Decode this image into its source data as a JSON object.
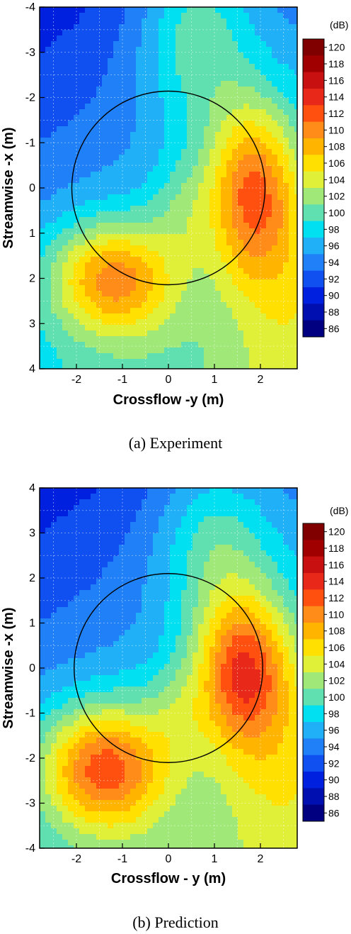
{
  "chart_data": [
    {
      "type": "heatmap",
      "caption": "(a)  Experiment",
      "xlabel": "Crossflow -y (m)",
      "ylabel": "Streamwise -x (m)",
      "xlim": [
        -2.8,
        2.8
      ],
      "ylim_top_to_bottom": [
        -4,
        4
      ],
      "xticks": [
        "-2",
        "-1",
        "0",
        "1",
        "2"
      ],
      "yticks": [
        "-4",
        "-3",
        "-2",
        "-1",
        "0",
        "1",
        "2",
        "3",
        "4"
      ],
      "grid": true,
      "circle": {
        "cx": 0,
        "cy": 0,
        "r": 2.1
      },
      "colorbar": {
        "unit": "(dB)",
        "levels": [
          "120",
          "118",
          "116",
          "114",
          "112",
          "110",
          "108",
          "106",
          "104",
          "102",
          "100",
          "98",
          "96",
          "94",
          "92",
          "90",
          "88",
          "86"
        ],
        "colors": [
          "#800000",
          "#a00000",
          "#c81010",
          "#e82818",
          "#ff5010",
          "#ff8c18",
          "#ffb400",
          "#ffe000",
          "#e0f038",
          "#a0e878",
          "#60e0b0",
          "#00e0f0",
          "#20b0f8",
          "#2080f8",
          "#1050f0",
          "#0020e0",
          "#0010b0",
          "#000080"
        ]
      },
      "sources": [
        {
          "x": 1.8,
          "y": 0.0,
          "a": 13,
          "sx": 0.7,
          "sy": 1.4
        },
        {
          "x": -1.2,
          "y": 2.0,
          "a": 13,
          "sx": 1.0,
          "sy": 0.9
        },
        {
          "x": 2.6,
          "y": 2.0,
          "a": 4,
          "sx": 0.9,
          "sy": 1.8
        },
        {
          "x": 0.3,
          "y": 0.4,
          "a": 3,
          "sx": 0.5,
          "sy": 0.8
        },
        {
          "x": 0.6,
          "y": -3.5,
          "a": 7,
          "sx": 0.9,
          "sy": 1.5
        }
      ],
      "base": {
        "at": 100,
        "y": 3.0,
        "x": -0.8
      }
    },
    {
      "type": "heatmap",
      "caption": "(b)  Prediction",
      "xlabel": "Crossflow - y (m)",
      "ylabel": "Streamwise -x (m)",
      "xlim": [
        -2.8,
        2.8
      ],
      "ylim_top_to_bottom": [
        4,
        -4
      ],
      "xticks": [
        "-2",
        "-1",
        "0",
        "1",
        "2"
      ],
      "yticks": [
        "4",
        "3",
        "2",
        "1",
        "0",
        "-1",
        "-2",
        "-3",
        "-4"
      ],
      "grid": true,
      "circle": {
        "cx": 0,
        "cy": 0,
        "r": 2.05
      },
      "colorbar": {
        "unit": "(dB)",
        "levels": [
          "120",
          "118",
          "116",
          "114",
          "112",
          "110",
          "108",
          "106",
          "104",
          "102",
          "100",
          "98",
          "96",
          "94",
          "92",
          "90",
          "88",
          "86"
        ],
        "colors": [
          "#800000",
          "#a00000",
          "#c81010",
          "#e82818",
          "#ff5010",
          "#ff8c18",
          "#ffb400",
          "#ffe000",
          "#e0f038",
          "#a0e878",
          "#60e0b0",
          "#00e0f0",
          "#20b0f8",
          "#2080f8",
          "#1050f0",
          "#0020e0",
          "#0010b0",
          "#000080"
        ]
      },
      "sources": [
        {
          "x": 1.6,
          "y": 0.0,
          "a": 14,
          "sx": 0.7,
          "sy": 1.2
        },
        {
          "x": -1.4,
          "y": -2.2,
          "a": 15,
          "sx": 1.0,
          "sy": 1.0
        },
        {
          "x": 2.4,
          "y": -1.8,
          "a": 5,
          "sx": 1.0,
          "sy": 1.8
        },
        {
          "x": 0.2,
          "y": -1.0,
          "a": 3,
          "sx": 0.5,
          "sy": 0.8
        },
        {
          "x": 1.0,
          "y": 2.8,
          "a": 6,
          "sx": 0.9,
          "sy": 1.4
        }
      ],
      "base": {
        "at": 100,
        "y": -2.9,
        "x": -0.7
      }
    }
  ]
}
